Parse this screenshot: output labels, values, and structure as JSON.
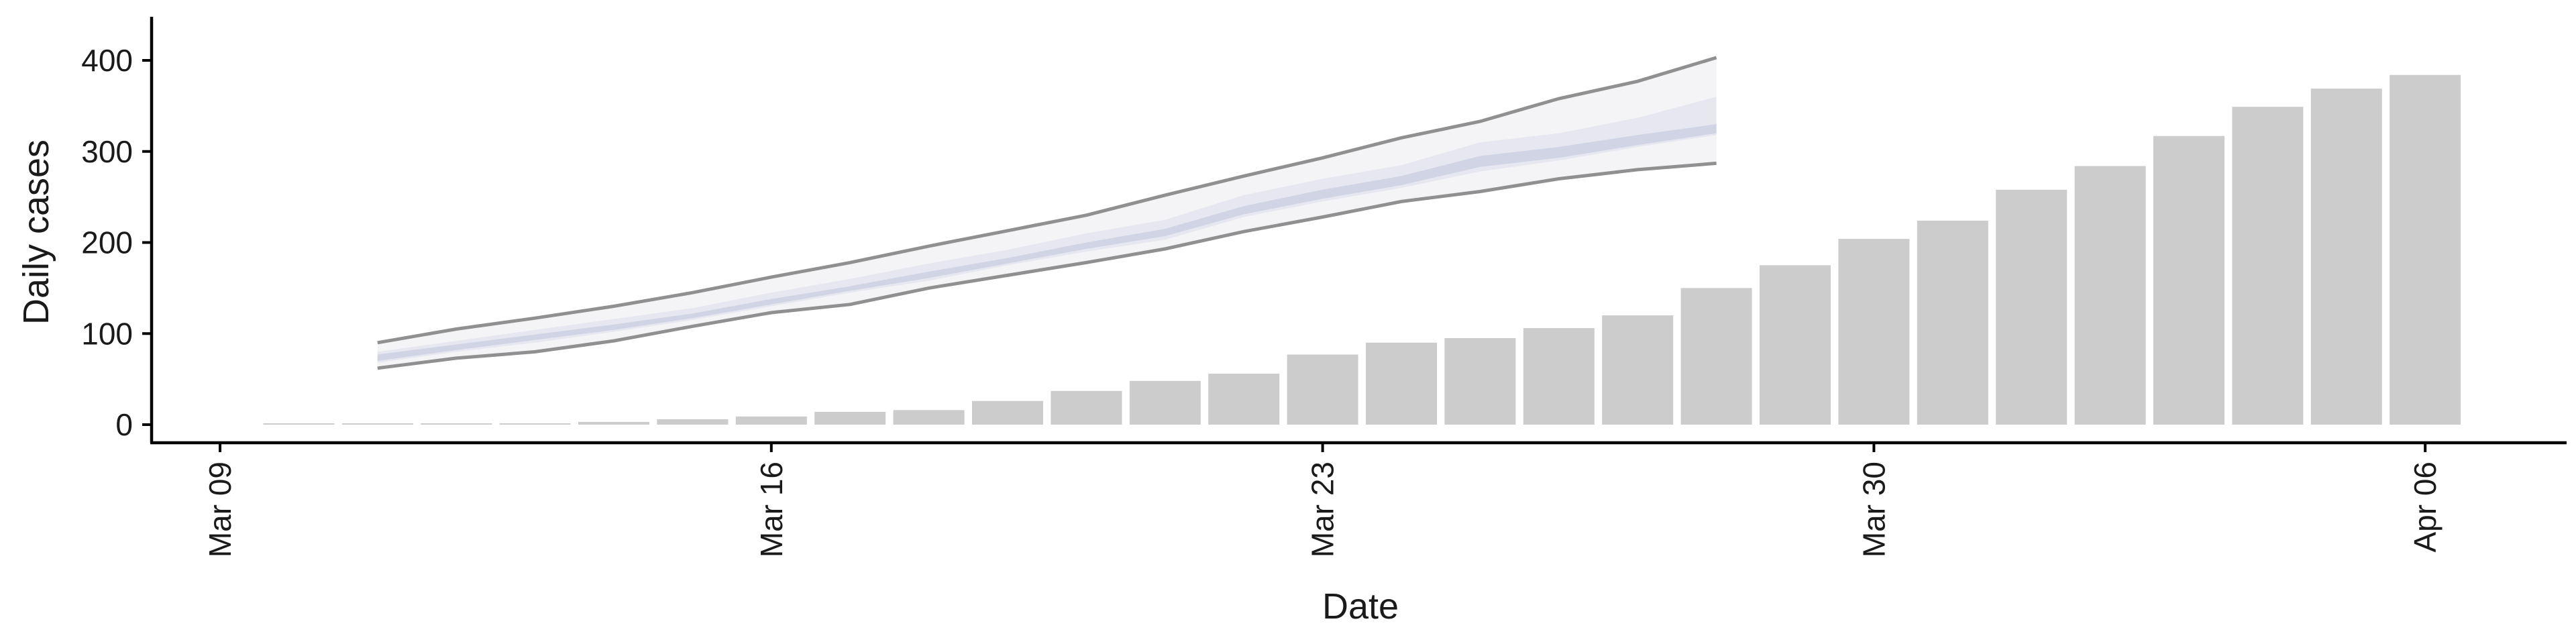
{
  "chart_data": {
    "type": "bar",
    "xlabel": "Date",
    "ylabel": "Daily cases",
    "ylim": [
      -20,
      440
    ],
    "y_ticks": [
      "0",
      "100",
      "200",
      "300",
      "400"
    ],
    "x_ticks": [
      {
        "date": "2020-03-09",
        "label": "Mar 09"
      },
      {
        "date": "2020-03-16",
        "label": "Mar 16"
      },
      {
        "date": "2020-03-23",
        "label": "Mar 23"
      },
      {
        "date": "2020-03-30",
        "label": "Mar 30"
      },
      {
        "date": "2020-04-06",
        "label": "Apr 06"
      }
    ],
    "x_range": [
      "2020-03-09",
      "2020-04-06"
    ],
    "grid": false,
    "legend": "none",
    "bar_color": "#cccccc",
    "bars": {
      "dates": [
        "2020-03-10",
        "2020-03-11",
        "2020-03-12",
        "2020-03-13",
        "2020-03-14",
        "2020-03-15",
        "2020-03-16",
        "2020-03-17",
        "2020-03-18",
        "2020-03-19",
        "2020-03-20",
        "2020-03-21",
        "2020-03-22",
        "2020-03-23",
        "2020-03-24",
        "2020-03-25",
        "2020-03-26",
        "2020-03-27",
        "2020-03-28",
        "2020-03-29",
        "2020-03-30",
        "2020-03-31",
        "2020-04-01",
        "2020-04-02",
        "2020-04-03",
        "2020-04-04",
        "2020-04-05",
        "2020-04-06"
      ],
      "values": [
        1,
        1,
        1,
        1,
        3,
        6,
        9,
        14,
        16,
        26,
        37,
        48,
        56,
        77,
        90,
        95,
        106,
        120,
        150,
        175,
        204,
        224,
        258,
        284,
        317,
        349,
        369,
        384
      ]
    },
    "forecast": {
      "dates": [
        "2020-03-11",
        "2020-03-12",
        "2020-03-13",
        "2020-03-14",
        "2020-03-15",
        "2020-03-16",
        "2020-03-17",
        "2020-03-18",
        "2020-03-19",
        "2020-03-20",
        "2020-03-21",
        "2020-03-22",
        "2020-03-23",
        "2020-03-24",
        "2020-03-25",
        "2020-03-26",
        "2020-03-27",
        "2020-03-28"
      ],
      "outer_upper": [
        90,
        105,
        117,
        130,
        145,
        162,
        178,
        196,
        213,
        230,
        252,
        273,
        293,
        315,
        333,
        358,
        377,
        403
      ],
      "outer_lower": [
        62,
        73,
        80,
        92,
        108,
        123,
        132,
        150,
        164,
        178,
        193,
        212,
        228,
        245,
        256,
        270,
        280,
        287
      ],
      "mid_upper": [
        80,
        92,
        104,
        116,
        128,
        145,
        160,
        177,
        192,
        210,
        225,
        252,
        270,
        285,
        310,
        320,
        337,
        360
      ],
      "mid_lower": [
        68,
        80,
        90,
        102,
        115,
        130,
        145,
        158,
        175,
        190,
        203,
        228,
        245,
        260,
        278,
        290,
        305,
        318
      ],
      "inner_upper": [
        77,
        88,
        99,
        110,
        122,
        138,
        152,
        168,
        183,
        200,
        215,
        240,
        258,
        273,
        295,
        305,
        318,
        330
      ],
      "inner_lower": [
        70,
        82,
        93,
        104,
        117,
        132,
        147,
        161,
        177,
        193,
        207,
        231,
        248,
        263,
        283,
        293,
        307,
        320
      ],
      "colors": {
        "outer_fill": "#f4f4f7",
        "mid_fill": "#e6e7f0",
        "inner_fill": "#d0d4e4",
        "outer_line": "#909090"
      }
    }
  }
}
